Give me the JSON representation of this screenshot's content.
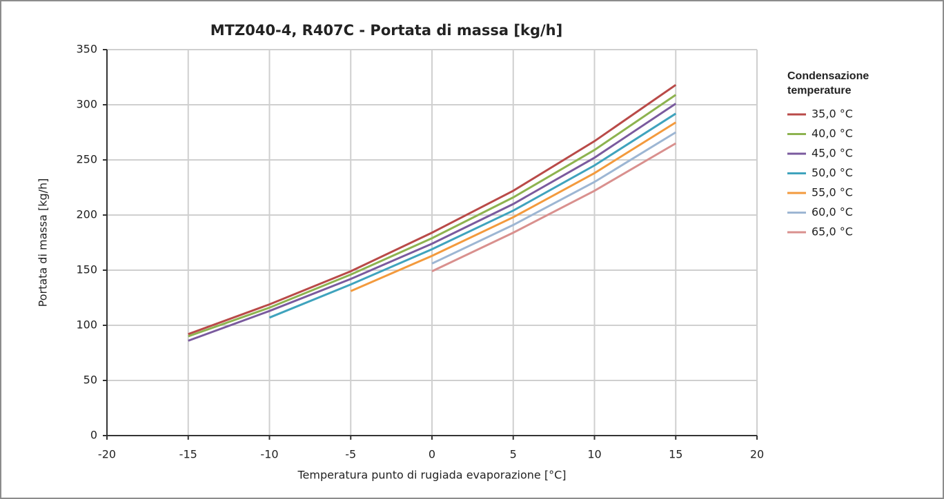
{
  "chart_data": {
    "type": "line",
    "title": "MTZ040-4, R407C - Portata di massa [kg/h]",
    "x_label": "Temperatura punto di rugiada evaporazione [°C]",
    "y_label": "Portata di massa [kg/h]",
    "legend_title": "Condensazione temperature",
    "x": [
      -15,
      -10,
      -5,
      0,
      5,
      10,
      15
    ],
    "series": [
      {
        "name": "35,0 °C",
        "color": "#b94a48",
        "values": [
          92,
          119,
          149,
          184,
          222,
          267,
          318
        ]
      },
      {
        "name": "40,0 °C",
        "color": "#8db34f",
        "values": [
          90,
          116,
          146,
          179,
          216,
          259,
          309
        ]
      },
      {
        "name": "45,0 °C",
        "color": "#7a5a9e",
        "values": [
          86,
          113,
          142,
          174,
          210,
          252,
          301
        ]
      },
      {
        "name": "50,0 °C",
        "color": "#3fa3bd",
        "values": [
          null,
          107,
          137,
          169,
          204,
          245,
          292
        ]
      },
      {
        "name": "55,0 °C",
        "color": "#f39a3d",
        "values": [
          null,
          null,
          131,
          163,
          198,
          238,
          284
        ]
      },
      {
        "name": "60,0 °C",
        "color": "#9db6d3",
        "values": [
          null,
          null,
          null,
          156,
          191,
          230,
          275
        ]
      },
      {
        "name": "65,0 °C",
        "color": "#d9908e",
        "values": [
          null,
          null,
          null,
          149,
          184,
          222,
          265
        ]
      }
    ],
    "xlim": [
      -20,
      20
    ],
    "xticks": [
      -20,
      -15,
      -10,
      -5,
      0,
      5,
      10,
      15,
      20
    ],
    "ylim": [
      0,
      350
    ],
    "yticks": [
      0,
      50,
      100,
      150,
      200,
      250,
      300,
      350
    ],
    "grid": true,
    "legend": "right"
  }
}
